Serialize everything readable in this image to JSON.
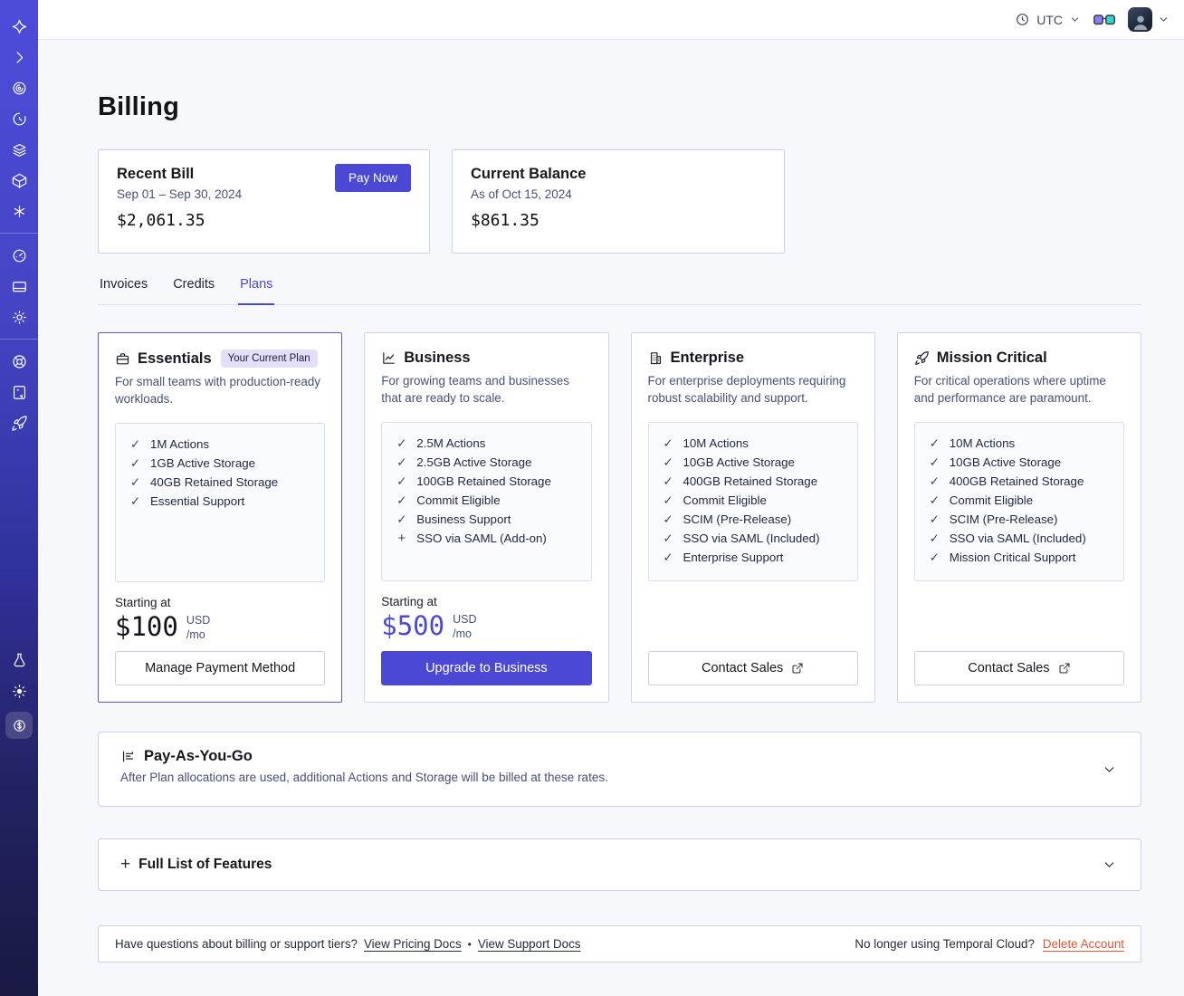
{
  "page": {
    "title": "Billing"
  },
  "topbar": {
    "timezone": "UTC"
  },
  "sidebar": {
    "icons": [
      "temporal-logo",
      "expand-chevron",
      "namespaces",
      "schedules",
      "layers",
      "deployments-cube",
      "nexus-asterisk",
      "usage-gauge",
      "billing-card",
      "settings-gear",
      "support-lifebuoy",
      "docs-book",
      "getting-started-rocket",
      "labs-flask",
      "theme-sun",
      "billing-active-coin"
    ]
  },
  "icons": {
    "check": "✓",
    "plus": "+"
  },
  "summary": {
    "recent_bill": {
      "title": "Recent Bill",
      "period": "Sep 01 – Sep 30, 2024",
      "amount": "$2,061.35",
      "cta": "Pay Now"
    },
    "current_balance": {
      "title": "Current Balance",
      "as_of": "As of Oct 15, 2024",
      "amount": "$861.35"
    }
  },
  "tabs": [
    {
      "label": "Invoices",
      "active": false
    },
    {
      "label": "Credits",
      "active": false
    },
    {
      "label": "Plans",
      "active": true
    }
  ],
  "plans": [
    {
      "name": "Essentials",
      "icon": "briefcase-icon",
      "badge": "Your Current Plan",
      "description": "For small teams with production-ready workloads.",
      "features": [
        {
          "label": "1M Actions",
          "mark": "check"
        },
        {
          "label": "1GB Active Storage",
          "mark": "check"
        },
        {
          "label": "40GB Retained Storage",
          "mark": "check"
        },
        {
          "label": "Essential Support",
          "mark": "check"
        }
      ],
      "price": {
        "prefix": "Starting at",
        "amount": "$100",
        "currency": "USD",
        "period": "/mo"
      },
      "cta": {
        "label": "Manage Payment Method"
      }
    },
    {
      "name": "Business",
      "icon": "line-chart-icon",
      "description": "For growing teams and businesses that are ready to scale.",
      "features": [
        {
          "label": "2.5M Actions",
          "mark": "check"
        },
        {
          "label": "2.5GB Active Storage",
          "mark": "check"
        },
        {
          "label": "100GB Retained Storage",
          "mark": "check"
        },
        {
          "label": "Commit Eligible",
          "mark": "check"
        },
        {
          "label": "Business Support",
          "mark": "check"
        },
        {
          "label": "SSO via SAML (Add-on)",
          "mark": "plus"
        }
      ],
      "price": {
        "prefix": "Starting at",
        "amount": "$500",
        "currency": "USD",
        "period": "/mo"
      },
      "cta": {
        "label": "Upgrade to Business"
      }
    },
    {
      "name": "Enterprise",
      "icon": "building-icon",
      "description": "For enterprise deployments requiring robust scalability and support.",
      "features": [
        {
          "label": "10M Actions",
          "mark": "check"
        },
        {
          "label": "10GB Active Storage",
          "mark": "check"
        },
        {
          "label": "400GB Retained Storage",
          "mark": "check"
        },
        {
          "label": "Commit Eligible",
          "mark": "check"
        },
        {
          "label": "SCIM (Pre-Release)",
          "mark": "check"
        },
        {
          "label": "SSO via SAML (Included)",
          "mark": "check"
        },
        {
          "label": "Enterprise Support",
          "mark": "check"
        }
      ],
      "cta": {
        "label": "Contact Sales",
        "external": true
      }
    },
    {
      "name": "Mission Critical",
      "icon": "rocket-icon",
      "description": "For critical operations where uptime and performance are paramount.",
      "features": [
        {
          "label": "10M Actions",
          "mark": "check"
        },
        {
          "label": "10GB Active Storage",
          "mark": "check"
        },
        {
          "label": "400GB Retained Storage",
          "mark": "check"
        },
        {
          "label": "Commit Eligible",
          "mark": "check"
        },
        {
          "label": "SCIM (Pre-Release)",
          "mark": "check"
        },
        {
          "label": "SSO via SAML (Included)",
          "mark": "check"
        },
        {
          "label": "Mission Critical Support",
          "mark": "check"
        }
      ],
      "cta": {
        "label": "Contact Sales",
        "external": true
      }
    }
  ],
  "accordions": [
    {
      "title": "Pay-As-You-Go",
      "subtitle": "After Plan allocations are used, additional Actions and Storage will be billed at these rates."
    },
    {
      "title": "Full List of Features"
    }
  ],
  "footer": {
    "question": "Have questions about billing or support tiers?",
    "links": [
      "View Pricing Docs",
      "View Support Docs"
    ],
    "separator": "•",
    "right_text": "No longer using Temporal Cloud?",
    "delete_label": "Delete Account"
  },
  "colors": {
    "accent": "#4b48d6",
    "sidebar_top": "#4d4cda",
    "sidebar_bottom": "#191942",
    "badge_bg": "#e4defb",
    "delete_link": "#e2532f",
    "background": "#f7f8fb"
  }
}
